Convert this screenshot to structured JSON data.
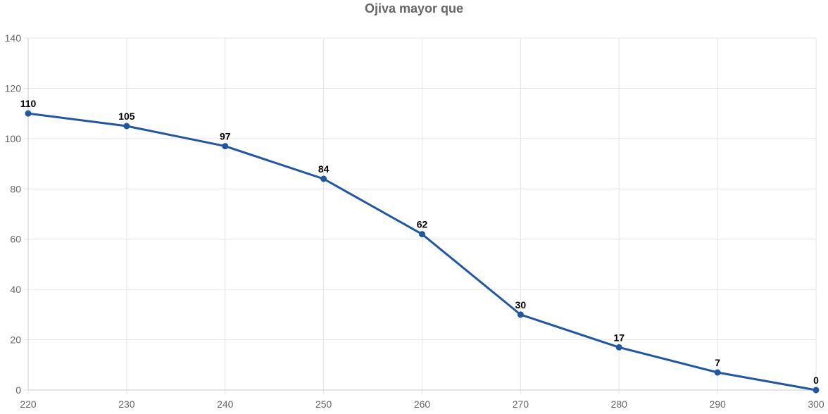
{
  "chart_data": {
    "type": "line",
    "title": "Ojiva mayor que",
    "xlabel": "",
    "ylabel": "",
    "x": [
      220,
      230,
      240,
      250,
      260,
      270,
      280,
      290,
      300
    ],
    "x_ticks": [
      "220",
      "230",
      "240",
      "250",
      "260",
      "270",
      "280",
      "290",
      "300"
    ],
    "y_ticks": [
      "0",
      "20",
      "40",
      "60",
      "80",
      "100",
      "120",
      "140"
    ],
    "xlim": [
      220,
      300
    ],
    "ylim": [
      0,
      140
    ],
    "grid": true,
    "legend": "none",
    "series": [
      {
        "values": [
          110,
          105,
          97,
          84,
          62,
          30,
          17,
          7,
          0
        ],
        "labels": [
          "110",
          "105",
          "97",
          "84",
          "62",
          "30",
          "17",
          "7",
          "0"
        ],
        "color": "#1f56a6"
      }
    ],
    "grid_color": "#e5e5e5",
    "axis_color": "#c8c8c8",
    "text_color": "#666666"
  }
}
